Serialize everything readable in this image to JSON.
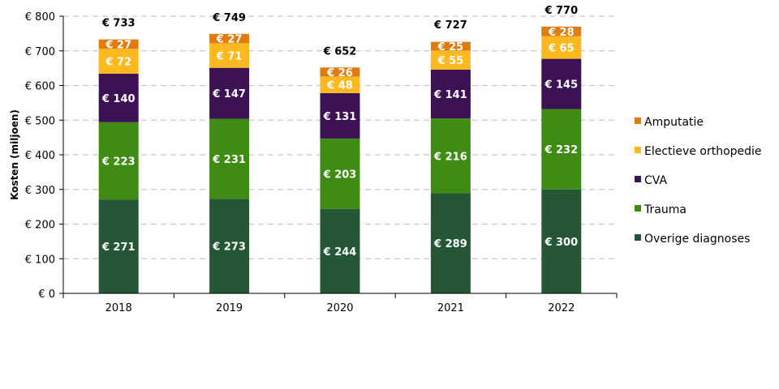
{
  "chart_data": {
    "type": "bar",
    "stacked": true,
    "ylabel": "Kosten (miljoen)",
    "ylim": [
      0,
      800
    ],
    "y_ticks": [
      "€ 0",
      "€ 100",
      "€ 200",
      "€ 300",
      "€ 400",
      "€ 500",
      "€ 600",
      "€ 700",
      "€ 800"
    ],
    "grid": true,
    "legend_position": "right",
    "categories": [
      "2018",
      "2019",
      "2020",
      "2021",
      "2022"
    ],
    "series": [
      {
        "name": "Overige diagnoses",
        "color": "#255737",
        "values": [
          271,
          273,
          244,
          289,
          300
        ],
        "labels": [
          "€ 271",
          "€ 273",
          "€ 244",
          "€ 289",
          "€ 300"
        ]
      },
      {
        "name": "Trauma",
        "color": "#3f8c14",
        "values": [
          223,
          231,
          203,
          216,
          232
        ],
        "labels": [
          "€ 223",
          "€ 231",
          "€ 203",
          "€ 216",
          "€ 232"
        ]
      },
      {
        "name": "CVA",
        "color": "#3c1254",
        "values": [
          140,
          147,
          131,
          141,
          145
        ],
        "labels": [
          "€ 140",
          "€ 147",
          "€ 131",
          "€ 141",
          "€ 145"
        ]
      },
      {
        "name": "Electieve orthopedie",
        "color": "#fbb81f",
        "values": [
          72,
          71,
          48,
          55,
          65
        ],
        "labels": [
          "€ 72",
          "€ 71",
          "€ 48",
          "€ 55",
          "€ 65"
        ]
      },
      {
        "name": "Amputatie",
        "color": "#e07b10",
        "values": [
          27,
          27,
          26,
          25,
          28
        ],
        "labels": [
          "€ 27",
          "€ 27",
          "€ 26",
          "€ 25",
          "€ 28"
        ]
      }
    ],
    "totals": [
      733,
      749,
      652,
      727,
      770
    ],
    "total_labels": [
      "€ 733",
      "€ 749",
      "€ 652",
      "€ 727",
      "€ 770"
    ],
    "legend_order": [
      "Amputatie",
      "Electieve orthopedie",
      "CVA",
      "Trauma",
      "Overige diagnoses"
    ]
  }
}
